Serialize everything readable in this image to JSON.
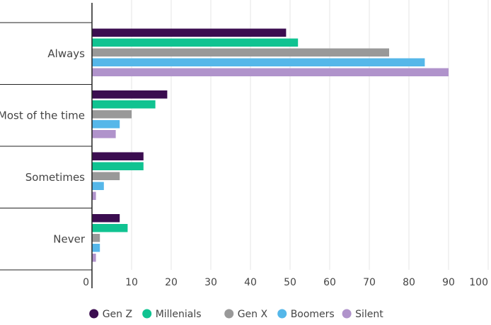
{
  "chart_data": {
    "type": "bar",
    "orientation": "horizontal",
    "title": "",
    "xlabel": "",
    "ylabel": "",
    "categories": [
      "Always",
      "Most of the time",
      "Sometimes",
      "Never"
    ],
    "series": [
      {
        "name": "Gen Z",
        "color": "#3b0d50",
        "values": [
          49,
          19,
          13,
          7
        ]
      },
      {
        "name": "Millenials",
        "color": "#10c391",
        "values": [
          52,
          16,
          13,
          9
        ]
      },
      {
        "name": "Gen X",
        "color": "#999999",
        "values": [
          75,
          10,
          7,
          2
        ]
      },
      {
        "name": "Boomers",
        "color": "#55b7e9",
        "values": [
          84,
          7,
          3,
          2
        ]
      },
      {
        "name": "Silent",
        "color": "#b093cb",
        "values": [
          90,
          6,
          1,
          1
        ]
      }
    ],
    "xlim": [
      0,
      100
    ],
    "xticks": [
      "0",
      "10",
      "20",
      "30",
      "40",
      "50",
      "60",
      "70",
      "80",
      "90",
      "100"
    ],
    "grid": true,
    "legend_position": "bottom"
  }
}
